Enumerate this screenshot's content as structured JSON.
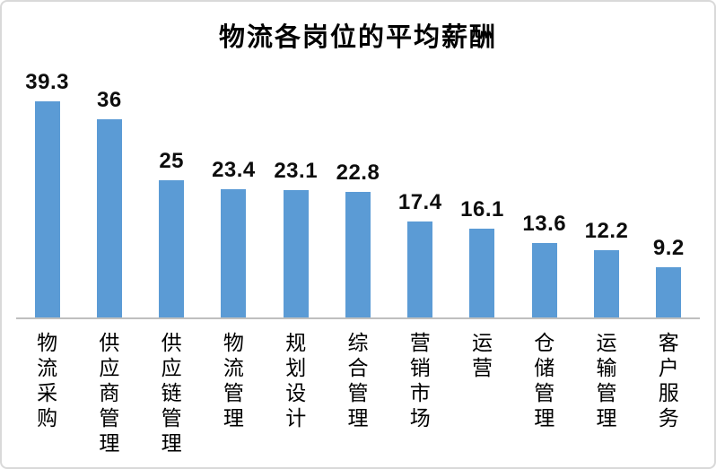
{
  "chart_data": {
    "type": "bar",
    "title": "物流各岗位的平均薪酬",
    "categories": [
      "物流采购",
      "供应商管理",
      "供应链管理",
      "物流管理",
      "规划设计",
      "综合管理",
      "营销市场",
      "运营",
      "仓储管理",
      "运输管理",
      "客户服务"
    ],
    "values": [
      39.3,
      36,
      25,
      23.4,
      23.1,
      22.8,
      17.4,
      16.1,
      13.6,
      12.2,
      9.2
    ],
    "data_labels": [
      "39.3",
      "36",
      "25",
      "23.4",
      "23.1",
      "22.8",
      "17.4",
      "16.1",
      "13.6",
      "12.2",
      "9.2"
    ],
    "xlabel": "",
    "ylabel": "",
    "ylim": [
      0,
      41
    ],
    "grid": false,
    "legend_position": "none",
    "bar_color": "#5b9bd5",
    "axis_line_color": "#bfbfbf",
    "text_color": "#000000",
    "border_color": "#d9d9d9"
  }
}
